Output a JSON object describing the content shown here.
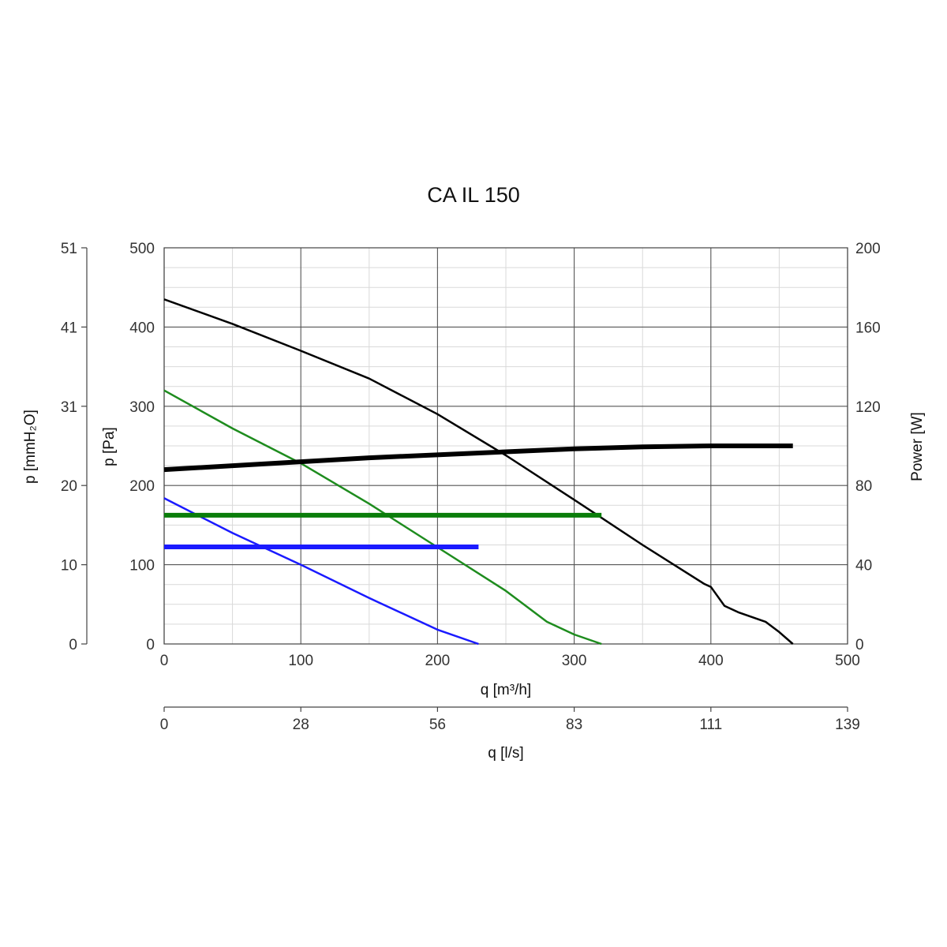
{
  "chart_data": {
    "type": "line",
    "title": "CA IL 150",
    "xlabel": "q [m³/h]",
    "xlim": [
      0,
      500
    ],
    "x_ticks": [
      0,
      100,
      200,
      300,
      400,
      500
    ],
    "x_tick_labels": [
      "0",
      "100",
      "200",
      "300",
      "400",
      "500"
    ],
    "ylabel": "p [Pa]",
    "ylim": [
      0,
      500
    ],
    "y_ticks": [
      0,
      100,
      200,
      300,
      400,
      500
    ],
    "y_tick_labels": [
      "0",
      "100",
      "200",
      "300",
      "400",
      "500"
    ],
    "y2label": "Power [W]",
    "y2lim": [
      0,
      200
    ],
    "y2_ticks": [
      0,
      40,
      80,
      120,
      160,
      200
    ],
    "y2_tick_labels": [
      "0",
      "40",
      "80",
      "120",
      "160",
      "200"
    ],
    "y3label": "p [mmH₂O]",
    "y3_tick_labels": [
      "0",
      "10",
      "20",
      "31",
      "41",
      "51"
    ],
    "x2label": "q [l/s]",
    "x2_tick_labels": [
      "0",
      "28",
      "56",
      "83",
      "111",
      "139"
    ],
    "grid": true,
    "series": [
      {
        "axis": "pressure",
        "color": "#000000",
        "width": 2.5,
        "points": [
          [
            0,
            435
          ],
          [
            50,
            404
          ],
          [
            100,
            370
          ],
          [
            150,
            335
          ],
          [
            200,
            290
          ],
          [
            250,
            238
          ],
          [
            300,
            182
          ],
          [
            350,
            125
          ],
          [
            395,
            76
          ],
          [
            400,
            72
          ],
          [
            405,
            60
          ],
          [
            410,
            48
          ],
          [
            420,
            40
          ],
          [
            440,
            28
          ],
          [
            450,
            15
          ],
          [
            460,
            0
          ]
        ]
      },
      {
        "axis": "pressure",
        "color": "#1e8c1e",
        "width": 2.5,
        "points": [
          [
            0,
            320
          ],
          [
            50,
            272
          ],
          [
            100,
            228
          ],
          [
            150,
            177
          ],
          [
            200,
            122
          ],
          [
            250,
            67
          ],
          [
            280,
            28
          ],
          [
            300,
            12
          ],
          [
            320,
            0
          ]
        ]
      },
      {
        "axis": "pressure",
        "color": "#1a1aff",
        "width": 2.5,
        "points": [
          [
            0,
            184
          ],
          [
            50,
            140
          ],
          [
            100,
            100
          ],
          [
            150,
            58
          ],
          [
            200,
            18
          ],
          [
            230,
            0
          ]
        ]
      },
      {
        "axis": "power",
        "color": "#000000",
        "width": 6,
        "points": [
          [
            0,
            88
          ],
          [
            100,
            92
          ],
          [
            150,
            94
          ],
          [
            250,
            97
          ],
          [
            300,
            98.5
          ],
          [
            350,
            99.5
          ],
          [
            400,
            100
          ],
          [
            460,
            100
          ]
        ]
      },
      {
        "axis": "power",
        "color": "#0a7d0a",
        "width": 6,
        "points": [
          [
            0,
            65
          ],
          [
            320,
            65
          ]
        ]
      },
      {
        "axis": "power",
        "color": "#1a1aff",
        "width": 6,
        "points": [
          [
            0,
            49
          ],
          [
            230,
            49
          ]
        ]
      }
    ]
  }
}
